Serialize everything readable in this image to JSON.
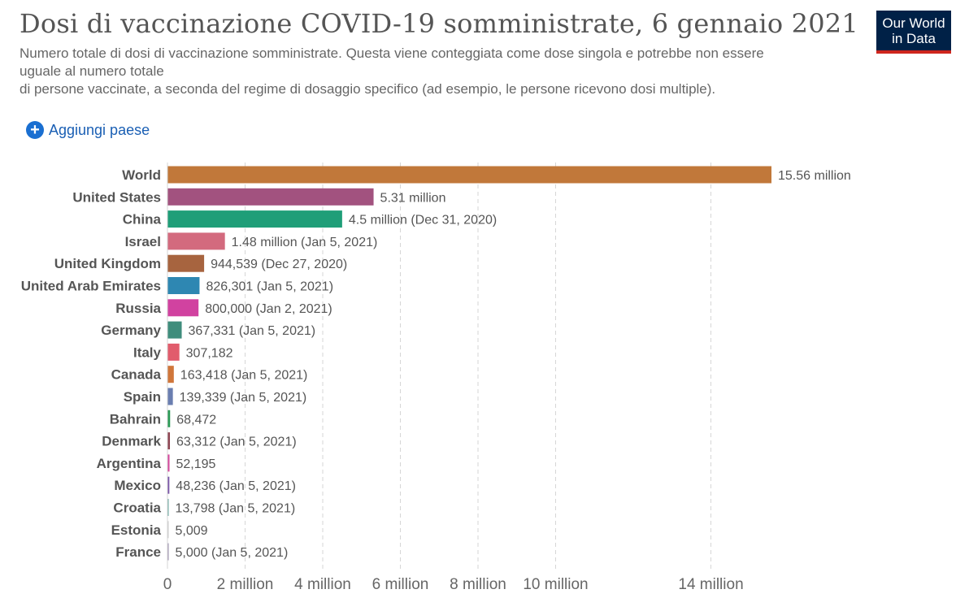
{
  "header": {
    "title": "Dosi di vaccinazione COVID-19 somministrate, 6 gennaio 2021",
    "subtitle_lines": [
      "Numero totale di dosi di vaccinazione somministrate. Questa viene conteggiata come dose singola e potrebbe non essere",
      "uguale al numero totale",
      "di persone vaccinate, a seconda del regime di dosaggio specifico (ad esempio, le persone ricevono dosi multiple)."
    ]
  },
  "logo": {
    "line1": "Our World",
    "line2": "in Data"
  },
  "controls": {
    "add_country_label": "Aggiungi paese",
    "add_icon": "plus-circle-icon"
  },
  "chart_data": {
    "type": "bar",
    "orientation": "horizontal",
    "title": "Dosi di vaccinazione COVID-19 somministrate, 6 gennaio 2021",
    "grid": true,
    "xlim": [
      0,
      15560000
    ],
    "x_ticks": [
      {
        "value": 0,
        "label": "0"
      },
      {
        "value": 2000000,
        "label": "2 million"
      },
      {
        "value": 4000000,
        "label": "4 million"
      },
      {
        "value": 6000000,
        "label": "6 million"
      },
      {
        "value": 8000000,
        "label": "8 million"
      },
      {
        "value": 10000000,
        "label": "10 million"
      },
      {
        "value": 14000000,
        "label": "14 million"
      }
    ],
    "categories": [
      "World",
      "United States",
      "China",
      "Israel",
      "United Kingdom",
      "United Arab Emirates",
      "Russia",
      "Germany",
      "Italy",
      "Canada",
      "Spain",
      "Bahrain",
      "Denmark",
      "Argentina",
      "Mexico",
      "Croatia",
      "Estonia",
      "France"
    ],
    "values": [
      15560000,
      5310000,
      4500000,
      1480000,
      944539,
      826301,
      800000,
      367331,
      307182,
      163418,
      139339,
      68472,
      63312,
      52195,
      48236,
      13798,
      5009,
      5000
    ],
    "labels": [
      "15.56 million",
      "5.31 million",
      "4.5 million (Dec 31, 2020)",
      "1.48 million (Jan 5, 2021)",
      "944,539 (Dec 27, 2020)",
      "826,301 (Jan 5, 2021)",
      "800,000 (Jan 2, 2021)",
      "367,331 (Jan 5, 2021)",
      "307,182",
      "163,418 (Jan 5, 2021)",
      "139,339 (Jan 5, 2021)",
      "68,472",
      "63,312 (Jan 5, 2021)",
      "52,195",
      "48,236 (Jan 5, 2021)",
      "13,798 (Jan 5, 2021)",
      "5,009",
      "5,000 (Jan 5, 2021)"
    ],
    "colors": [
      "#c1783a",
      "#a2527f",
      "#1f9e78",
      "#d36a7e",
      "#a7643f",
      "#2e87b2",
      "#d142a0",
      "#3f8d7c",
      "#e15c6c",
      "#d0763a",
      "#6a7eb0",
      "#2a9a55",
      "#8e4552",
      "#d6479c",
      "#7a55a8",
      "#6aa9a0",
      "#cccccc",
      "#9a8fae"
    ]
  }
}
